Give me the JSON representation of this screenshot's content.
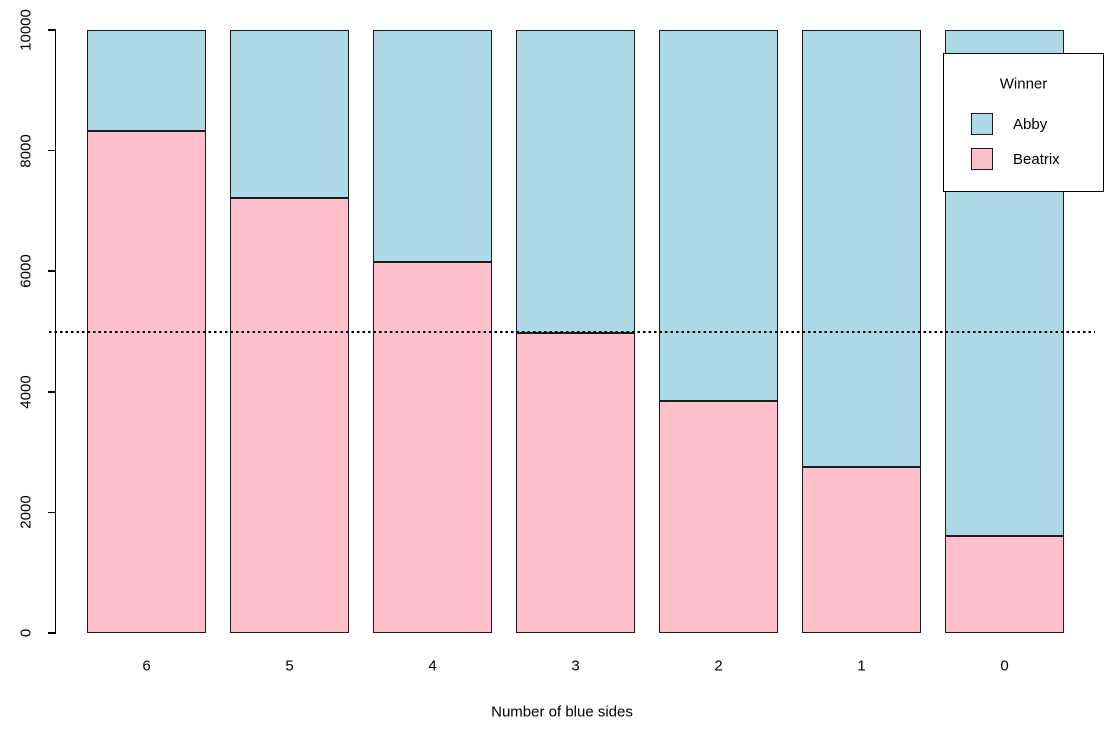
{
  "chart_data": {
    "type": "bar",
    "stacked": true,
    "title": "",
    "xlabel": "Number of blue sides",
    "ylabel": "",
    "categories": [
      "6",
      "5",
      "4",
      "3",
      "2",
      "1",
      "0"
    ],
    "series": [
      {
        "name": "Beatrix",
        "color": "#FFC0CB",
        "values": [
          8320,
          7210,
          6150,
          4970,
          3850,
          2750,
          1610
        ]
      },
      {
        "name": "Abby",
        "color": "#ADD8E6",
        "values": [
          1680,
          2790,
          3850,
          5030,
          6150,
          7250,
          8390
        ]
      }
    ],
    "bar_total": 10000,
    "ylim": [
      0,
      10000
    ],
    "y_ticks": [
      "0",
      "2000",
      "4000",
      "6000",
      "8000",
      "10000"
    ],
    "y_tick_values": [
      0,
      2000,
      4000,
      6000,
      8000,
      10000
    ],
    "grid": false,
    "legend_position": "top-right",
    "reference_line": {
      "value": 5000,
      "style": "dotted",
      "color": "#000000"
    },
    "legend": {
      "title": "Winner",
      "entries": [
        {
          "label": "Abby",
          "color": "#ADD8E6"
        },
        {
          "label": "Beatrix",
          "color": "#FFC0CB"
        }
      ]
    },
    "colors": {
      "bar_border": "#1c1c1c",
      "axis": "#000000",
      "text": "#000000",
      "background": "#FFFFFF"
    }
  }
}
